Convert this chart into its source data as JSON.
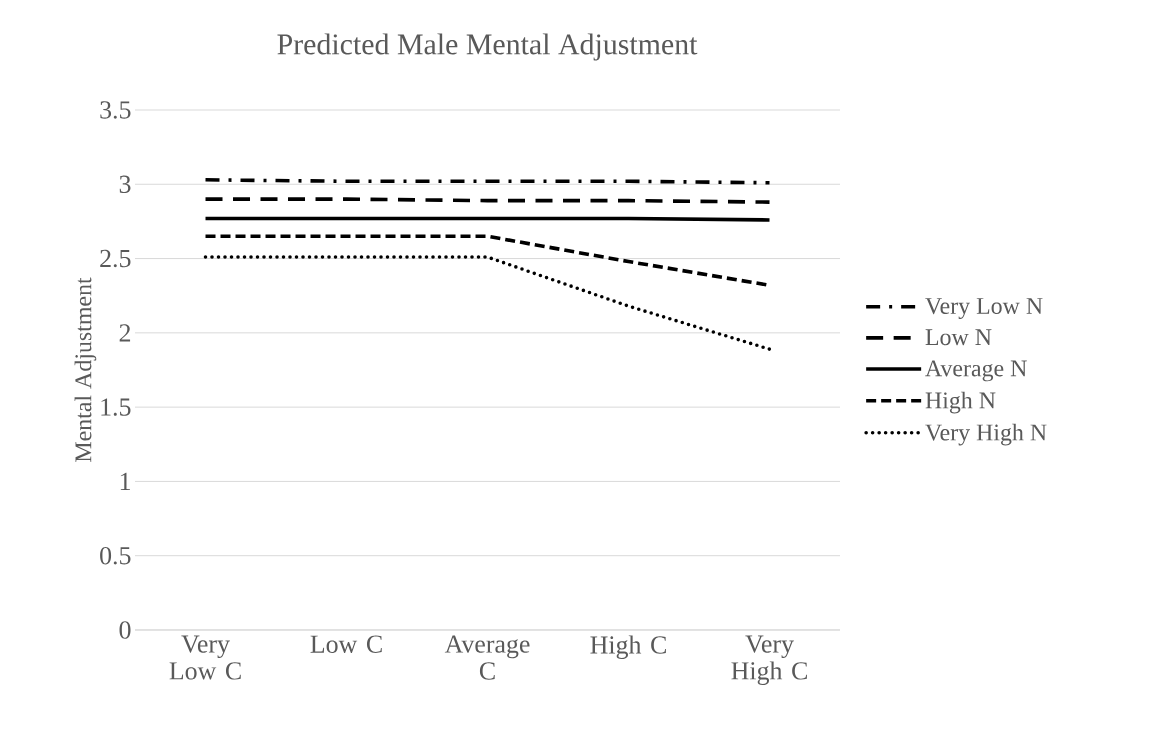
{
  "chart_data": {
    "type": "line",
    "title": "Predicted Male Mental Adjustment",
    "ylabel": "Mental Adjustment",
    "categories": [
      "Very Low C",
      "Low C",
      "Average C",
      "High C",
      "Very High C"
    ],
    "series": [
      {
        "name": "Very Low N",
        "color": "#000000",
        "line_style": "dashdot",
        "values": [
          3.03,
          3.02,
          3.02,
          3.02,
          3.01
        ]
      },
      {
        "name": "Low N",
        "color": "#000000",
        "line_style": "long dashed",
        "values": [
          2.9,
          2.9,
          2.89,
          2.89,
          2.88
        ]
      },
      {
        "name": "Average N",
        "color": "#000000",
        "line_style": "solid",
        "values": [
          2.77,
          2.77,
          2.77,
          2.77,
          2.76
        ]
      },
      {
        "name": "High N",
        "color": "#000000",
        "line_style": "dashed",
        "values": [
          2.65,
          2.65,
          2.65,
          2.48,
          2.32
        ]
      },
      {
        "name": "Very High N",
        "color": "#000000",
        "line_style": "dotted",
        "values": [
          2.51,
          2.51,
          2.51,
          2.18,
          1.89
        ]
      }
    ],
    "ylim": [
      0,
      3.5
    ],
    "yticks": [
      0,
      0.5,
      1,
      1.5,
      2,
      2.5,
      3,
      3.5
    ],
    "grid": "y",
    "legend": "right"
  }
}
